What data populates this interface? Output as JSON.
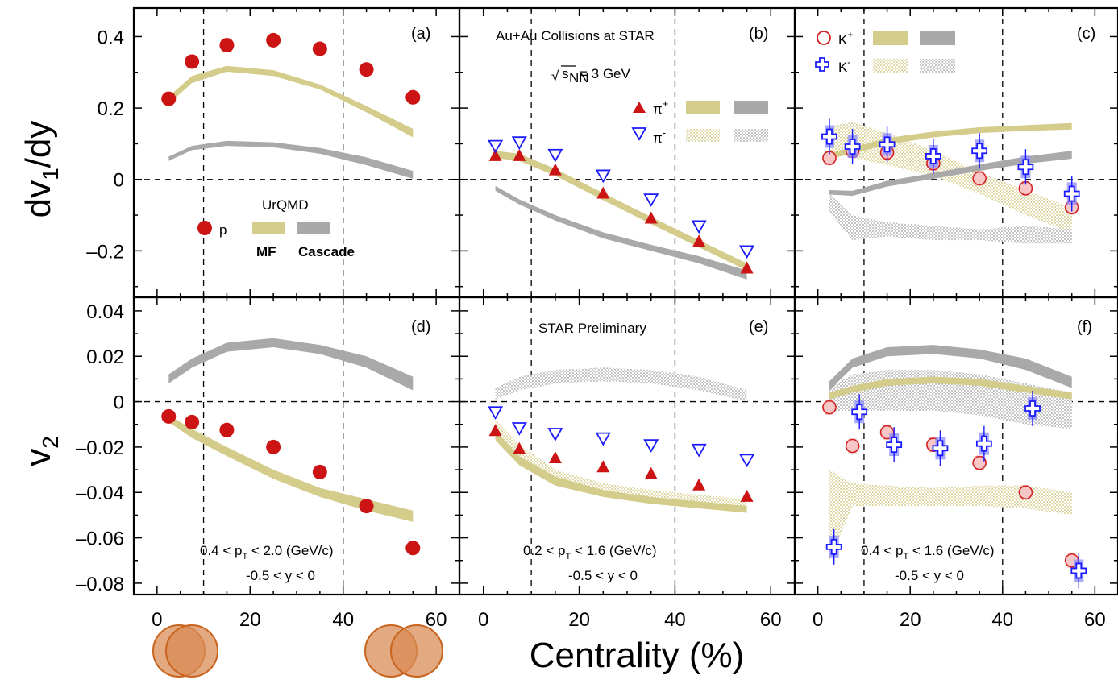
{
  "figure": {
    "x_axis_title": "Centrality (%)",
    "y_axis_title_top": "dv1/dy",
    "y_axis_title_bottom": "v2",
    "colors": {
      "proton": "#cc1414",
      "pi_plus": "#cc1414",
      "pi_minus": "#1a1aff",
      "k_plus": "#d42020",
      "k_minus": "#1a1aff",
      "mf_band": "#d4cc8a",
      "cascade_band": "#a9a9a9",
      "glyph_fill": "#d98c55"
    }
  },
  "texts": {
    "a": "(a)",
    "b": "(b)",
    "c": "(c)",
    "d": "(d)",
    "e": "(e)",
    "f": "(f)",
    "collision": "Au+Au Collisions at STAR",
    "energy": "= 3 GeV",
    "sqrt_symbol": "√",
    "sqrt_s": "s",
    "sqrt_sub": "NN",
    "star_prelim": "STAR Preliminary",
    "urqmd": "UrQMD",
    "p": "p",
    "mf": "MF",
    "cascade": "Cascade",
    "pip": "π",
    "pim": "π",
    "kp": "K",
    "km": "K",
    "sup_plus": "+",
    "sup_minus": "-",
    "pt_d": "0.4 < p",
    "pt_d_tail": " < 2.0 (GeV/c)",
    "pt_e": "0.2 < p",
    "pt_e_tail": " < 1.6 (GeV/c)",
    "pt_f": "0.4 < p",
    "pt_f_tail": " < 1.6 (GeV/c)",
    "pt_sub": "T",
    "y_cut": "-0.5 < y < 0"
  },
  "chart_data": [
    {
      "panel": "a",
      "type": "scatter",
      "ylim": [
        -0.33,
        0.48
      ],
      "xlim": [
        -5,
        65
      ],
      "yticks": [
        "–0.2",
        "0",
        "0.2",
        "0.4"
      ],
      "ytick_values": [
        -0.2,
        0,
        0.2,
        0.4
      ],
      "series": [
        {
          "name": "p",
          "x": [
            2.5,
            7.5,
            15,
            25,
            35,
            45,
            55
          ],
          "values": [
            0.226,
            0.33,
            0.376,
            0.39,
            0.366,
            0.308,
            0.23
          ]
        }
      ],
      "bands": [
        {
          "name": "MF",
          "x": [
            2.5,
            7.5,
            15,
            25,
            35,
            45,
            55
          ],
          "lo": [
            0.212,
            0.27,
            0.302,
            0.29,
            0.252,
            0.188,
            0.118
          ],
          "hi": [
            0.232,
            0.29,
            0.318,
            0.306,
            0.266,
            0.206,
            0.142
          ]
        },
        {
          "name": "Cascade",
          "x": [
            2.5,
            7.5,
            15,
            25,
            35,
            45,
            55
          ],
          "lo": [
            0.052,
            0.082,
            0.094,
            0.09,
            0.072,
            0.04,
            0.002
          ],
          "hi": [
            0.064,
            0.094,
            0.108,
            0.104,
            0.088,
            0.062,
            0.024
          ]
        }
      ]
    },
    {
      "panel": "b",
      "type": "scatter",
      "ylim": [
        -0.33,
        0.48
      ],
      "xlim": [
        -5,
        65
      ],
      "series": [
        {
          "name": "π+",
          "x": [
            2.5,
            7.5,
            15,
            25,
            35,
            45,
            55
          ],
          "values": [
            0.065,
            0.065,
            0.025,
            -0.04,
            -0.11,
            -0.175,
            -0.25
          ]
        },
        {
          "name": "π-",
          "x": [
            2.5,
            7.5,
            15,
            25,
            35,
            45,
            55
          ],
          "values": [
            0.095,
            0.105,
            0.07,
            0.012,
            -0.055,
            -0.13,
            -0.2
          ]
        }
      ],
      "bands": [
        {
          "name": "MF",
          "x": [
            2.5,
            7.5,
            15,
            25,
            35,
            45,
            55
          ],
          "lo": [
            0.06,
            0.052,
            0.01,
            -0.058,
            -0.125,
            -0.19,
            -0.255
          ],
          "hi": [
            0.08,
            0.072,
            0.03,
            -0.038,
            -0.105,
            -0.17,
            -0.235
          ]
        },
        {
          "name": "Cascade",
          "x": [
            2.5,
            7.5,
            15,
            25,
            35,
            45,
            55
          ],
          "lo": [
            -0.032,
            -0.07,
            -0.115,
            -0.165,
            -0.2,
            -0.235,
            -0.28
          ],
          "hi": [
            -0.018,
            -0.056,
            -0.1,
            -0.148,
            -0.183,
            -0.215,
            -0.255
          ]
        }
      ]
    },
    {
      "panel": "c",
      "type": "scatter",
      "ylim": [
        -0.33,
        0.48
      ],
      "xlim": [
        -5,
        65
      ],
      "series": [
        {
          "name": "K+",
          "x": [
            2.5,
            7.5,
            15,
            25,
            35,
            45,
            55
          ],
          "values": [
            0.06,
            0.08,
            0.075,
            0.045,
            0.003,
            -0.025,
            -0.078
          ]
        },
        {
          "name": "K-",
          "x": [
            2.5,
            7.5,
            15,
            25,
            35,
            45,
            55
          ],
          "values": [
            0.12,
            0.092,
            0.098,
            0.065,
            0.08,
            0.035,
            -0.04
          ]
        }
      ],
      "bands": [
        {
          "name": "MF",
          "x": [
            2.5,
            7.5,
            15,
            25,
            35,
            45,
            55
          ],
          "lo": [
            0.058,
            0.072,
            0.098,
            0.118,
            0.13,
            0.136,
            0.14
          ],
          "hi": [
            0.074,
            0.09,
            0.116,
            0.134,
            0.146,
            0.152,
            0.158
          ]
        },
        {
          "name": "Cascade",
          "x": [
            2.5,
            7.5,
            15,
            25,
            35,
            45,
            55
          ],
          "lo": [
            -0.042,
            -0.046,
            -0.02,
            0.002,
            0.024,
            0.044,
            0.058
          ],
          "hi": [
            -0.03,
            -0.032,
            -0.004,
            0.018,
            0.042,
            0.064,
            0.08
          ]
        }
      ],
      "hatched_bands": [
        {
          "name": "K- MF",
          "x": [
            2.5,
            7.5,
            15,
            25,
            35,
            45,
            55
          ],
          "lo": [
            0.08,
            0.06,
            0.04,
            0.01,
            -0.04,
            -0.1,
            -0.15
          ],
          "hi": [
            0.15,
            0.16,
            0.13,
            0.08,
            0.02,
            -0.03,
            -0.08
          ]
        },
        {
          "name": "K- Cascade",
          "x": [
            2.5,
            7.5,
            15,
            25,
            35,
            45,
            55
          ],
          "lo": [
            -0.09,
            -0.17,
            -0.16,
            -0.17,
            -0.17,
            -0.18,
            -0.18
          ],
          "hi": [
            -0.04,
            -0.1,
            -0.12,
            -0.13,
            -0.14,
            -0.13,
            -0.14
          ]
        }
      ]
    },
    {
      "panel": "d",
      "type": "scatter",
      "ylim": [
        -0.085,
        0.046
      ],
      "xlim": [
        -5,
        65
      ],
      "yticks": [
        "–0.08",
        "–0.06",
        "–0.04",
        "–0.02",
        "0",
        "0.02",
        "0.04"
      ],
      "ytick_values": [
        -0.08,
        -0.06,
        -0.04,
        -0.02,
        0,
        0.02,
        0.04
      ],
      "xticks": [
        "0",
        "20",
        "40",
        "60"
      ],
      "xtick_values": [
        0,
        20,
        40,
        60
      ],
      "series": [
        {
          "name": "p",
          "x": [
            2.5,
            7.5,
            15,
            25,
            35,
            45,
            55
          ],
          "values": [
            -0.0065,
            -0.009,
            -0.0125,
            -0.02,
            -0.031,
            -0.046,
            -0.0645
          ]
        }
      ],
      "bands": [
        {
          "name": "MF",
          "x": [
            2.5,
            7.5,
            15,
            25,
            35,
            45,
            55
          ],
          "lo": [
            -0.009,
            -0.016,
            -0.024,
            -0.034,
            -0.042,
            -0.048,
            -0.053
          ],
          "hi": [
            -0.006,
            -0.012,
            -0.02,
            -0.03,
            -0.038,
            -0.043,
            -0.048
          ]
        },
        {
          "name": "Cascade",
          "x": [
            2.5,
            7.5,
            15,
            25,
            35,
            45,
            55
          ],
          "lo": [
            0.008,
            0.015,
            0.022,
            0.024,
            0.021,
            0.015,
            0.005
          ],
          "hi": [
            0.012,
            0.019,
            0.026,
            0.028,
            0.025,
            0.02,
            0.011
          ]
        }
      ]
    },
    {
      "panel": "e",
      "type": "scatter",
      "ylim": [
        -0.085,
        0.046
      ],
      "xlim": [
        -5,
        65
      ],
      "xticks": [
        "0",
        "20",
        "40",
        "60"
      ],
      "xtick_values": [
        0,
        20,
        40,
        60
      ],
      "series": [
        {
          "name": "π+",
          "x": [
            2.5,
            7.5,
            15,
            25,
            35,
            45,
            55
          ],
          "values": [
            -0.013,
            -0.021,
            -0.025,
            -0.029,
            -0.032,
            -0.037,
            -0.042
          ]
        },
        {
          "name": "π-",
          "x": [
            2.5,
            7.5,
            15,
            25,
            35,
            45,
            55
          ],
          "values": [
            -0.0045,
            -0.0115,
            -0.014,
            -0.016,
            -0.019,
            -0.021,
            -0.0255
          ]
        }
      ],
      "bands": [
        {
          "name": "MF",
          "x": [
            2.5,
            7.5,
            15,
            25,
            35,
            45,
            55
          ],
          "lo": [
            -0.017,
            -0.028,
            -0.037,
            -0.042,
            -0.045,
            -0.047,
            -0.049
          ],
          "hi": [
            -0.013,
            -0.024,
            -0.033,
            -0.039,
            -0.042,
            -0.044,
            -0.046
          ]
        }
      ],
      "hatched_bands": [
        {
          "name": "π- MF",
          "x": [
            2.5,
            7.5,
            15,
            25,
            35,
            45,
            55
          ],
          "lo": [
            -0.015,
            -0.027,
            -0.036,
            -0.041,
            -0.043,
            -0.045,
            -0.047
          ],
          "hi": [
            -0.008,
            -0.019,
            -0.03,
            -0.036,
            -0.039,
            -0.041,
            -0.043
          ]
        },
        {
          "name": "π- Cascade",
          "x": [
            2.5,
            7.5,
            15,
            25,
            35,
            45,
            55
          ],
          "lo": [
            0.001,
            0.005,
            0.008,
            0.009,
            0.008,
            0.005,
            0.0
          ],
          "hi": [
            0.006,
            0.011,
            0.014,
            0.015,
            0.014,
            0.011,
            0.005
          ]
        }
      ]
    },
    {
      "panel": "f",
      "type": "scatter",
      "ylim": [
        -0.085,
        0.046
      ],
      "xlim": [
        -5,
        65
      ],
      "xticks": [
        "0",
        "20",
        "40",
        "60"
      ],
      "xtick_values": [
        0,
        20,
        40,
        60
      ],
      "series": [
        {
          "name": "K+",
          "x": [
            2.5,
            7.5,
            15,
            25,
            35,
            45,
            55
          ],
          "values": [
            -0.0025,
            -0.0195,
            -0.0135,
            -0.019,
            -0.027,
            -0.04,
            -0.07
          ]
        },
        {
          "name": "K-",
          "x": [
            3.5,
            9,
            16.5,
            26.5,
            36,
            46.5,
            56.5
          ],
          "values": [
            -0.064,
            -0.0045,
            -0.019,
            -0.0205,
            -0.0185,
            -0.003,
            -0.0745
          ]
        }
      ],
      "bands": [
        {
          "name": "MF",
          "x": [
            2.5,
            7.5,
            15,
            25,
            35,
            45,
            55
          ],
          "lo": [
            0.001,
            0.004,
            0.007,
            0.008,
            0.007,
            0.004,
            0.001
          ],
          "hi": [
            0.004,
            0.007,
            0.01,
            0.011,
            0.01,
            0.007,
            0.004
          ]
        },
        {
          "name": "Cascade",
          "x": [
            2.5,
            7.5,
            15,
            25,
            35,
            45,
            55
          ],
          "lo": [
            0.005,
            0.015,
            0.02,
            0.021,
            0.019,
            0.014,
            0.006
          ],
          "hi": [
            0.009,
            0.019,
            0.024,
            0.025,
            0.023,
            0.019,
            0.011
          ]
        }
      ],
      "hatched_bands": [
        {
          "name": "K- MF",
          "x": [
            2.5,
            7.5,
            15,
            25,
            35,
            45,
            55
          ],
          "lo": [
            -0.07,
            -0.046,
            -0.046,
            -0.046,
            -0.046,
            -0.047,
            -0.05
          ],
          "hi": [
            -0.03,
            -0.036,
            -0.037,
            -0.038,
            -0.037,
            -0.037,
            -0.04
          ]
        },
        {
          "name": "K- Cascade",
          "x": [
            2.5,
            7.5,
            15,
            25,
            35,
            45,
            55
          ],
          "lo": [
            -0.004,
            -0.004,
            -0.004,
            -0.004,
            -0.006,
            -0.01,
            -0.012
          ],
          "hi": [
            0.006,
            0.012,
            0.014,
            0.014,
            0.012,
            0.008,
            0.004
          ]
        }
      ]
    }
  ]
}
